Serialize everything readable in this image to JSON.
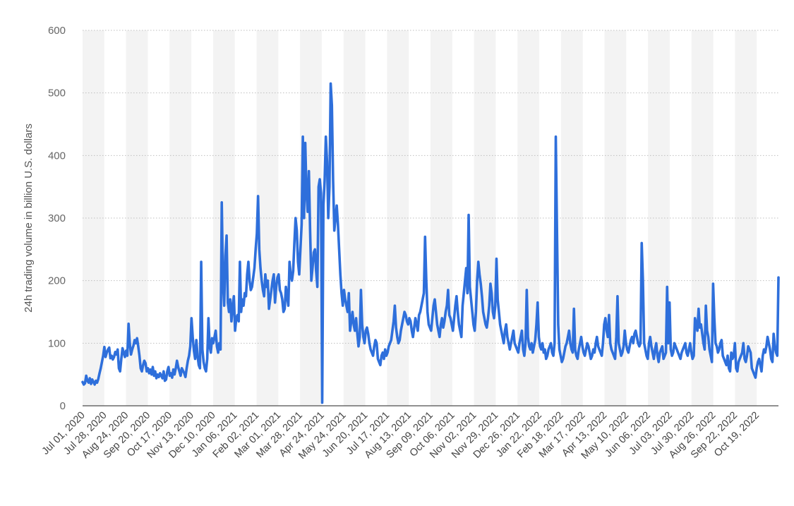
{
  "chart_data": {
    "type": "line",
    "title": "",
    "xlabel": "",
    "ylabel": "24h trading volume in billion U.S. dollars",
    "ylim": [
      0,
      600
    ],
    "yticks": [
      0,
      100,
      200,
      300,
      400,
      500,
      600
    ],
    "grid": "horizontal dotted",
    "legend": "none",
    "colors": {
      "line": "#2E6FDB",
      "band": "#F3F3F3",
      "grid": "#BFBFBF",
      "axis": "#222222"
    },
    "x_tick_labels": [
      "Jul 01, 2020",
      "Jul 28, 2020",
      "Aug 24, 2020",
      "Sep 20, 2020",
      "Oct 17, 2020",
      "Nov 13, 2020",
      "Dec 10, 2020",
      "Jan 06, 2021",
      "Feb 02, 2021",
      "Mar 01, 2021",
      "Mar 28, 2021",
      "Apr 24, 2021",
      "May 24, 2021",
      "Jun 20, 2021",
      "Jul 17, 2021",
      "Aug 13, 2021",
      "Sep 09, 2021",
      "Oct 06, 2021",
      "Nov 02, 2021",
      "Nov 29, 2021",
      "Dec 26, 2021",
      "Jan 22, 2022",
      "Feb 18, 2022",
      "Mar 17, 2022",
      "Apr 13, 2022",
      "May 10, 2022",
      "Jun 06, 2022",
      "Jul 03, 2022",
      "Jul 30, 2022",
      "Aug 26, 2022",
      "Sep 22, 2022",
      "Oct 19, 2022"
    ],
    "series": [
      {
        "values": [
          38,
          34,
          36,
          48,
          40,
          37,
          44,
          35,
          42,
          38,
          34,
          40,
          37,
          43,
          52,
          60,
          70,
          80,
          94,
          78,
          85,
          90,
          93,
          76,
          80,
          74,
          78,
          86,
          82,
          90,
          60,
          55,
          75,
          92,
          85,
          78,
          88,
          80,
          131,
          100,
          82,
          90,
          96,
          105,
          100,
          108,
          95,
          80,
          60,
          55,
          65,
          72,
          68,
          55,
          60,
          52,
          58,
          50,
          62,
          48,
          55,
          44,
          50,
          46,
          52,
          48,
          44,
          55,
          40,
          42,
          55,
          62,
          48,
          52,
          45,
          58,
          50,
          60,
          72,
          62,
          55,
          48,
          60,
          56,
          52,
          46,
          60,
          72,
          80,
          95,
          140,
          110,
          88,
          75,
          105,
          80,
          65,
          60,
          230,
          90,
          70,
          60,
          55,
          75,
          140,
          95,
          85,
          108,
          100,
          110,
          120,
          95,
          85,
          100,
          90,
          325,
          200,
          160,
          240,
          272,
          165,
          150,
          170,
          135,
          160,
          175,
          120,
          140,
          145,
          135,
          230,
          150,
          170,
          160,
          180,
          175,
          210,
          230,
          200,
          185,
          190,
          205,
          220,
          250,
          275,
          335,
          250,
          220,
          200,
          185,
          175,
          210,
          190,
          200,
          155,
          170,
          185,
          200,
          210,
          165,
          190,
          205,
          210,
          185,
          180,
          170,
          150,
          155,
          190,
          175,
          160,
          230,
          210,
          200,
          215,
          260,
          300,
          280,
          230,
          210,
          250,
          290,
          430,
          300,
          420,
          340,
          310,
          375,
          280,
          200,
          220,
          245,
          250,
          215,
          190,
          350,
          362,
          340,
          5,
          320,
          360,
          430,
          390,
          300,
          350,
          515,
          480,
          360,
          280,
          300,
          320,
          290,
          250,
          210,
          180,
          160,
          185,
          170,
          160,
          150,
          180,
          120,
          135,
          150,
          130,
          120,
          140,
          115,
          95,
          110,
          185,
          130,
          110,
          100,
          120,
          125,
          115,
          100,
          90,
          85,
          80,
          95,
          105,
          100,
          75,
          70,
          65,
          80,
          85,
          75,
          90,
          80,
          85,
          95,
          100,
          105,
          120,
          135,
          160,
          125,
          110,
          100,
          105,
          120,
          130,
          140,
          150,
          145,
          135,
          130,
          140,
          135,
          120,
          110,
          125,
          140,
          130,
          120,
          145,
          150,
          160,
          170,
          180,
          270,
          200,
          150,
          130,
          125,
          120,
          140,
          160,
          170,
          150,
          130,
          120,
          110,
          130,
          140,
          125,
          135,
          150,
          160,
          185,
          145,
          140,
          130,
          120,
          140,
          160,
          175,
          150,
          130,
          120,
          110,
          160,
          180,
          200,
          220,
          180,
          305,
          190,
          170,
          150,
          130,
          120,
          150,
          200,
          230,
          210,
          195,
          175,
          150,
          140,
          130,
          125,
          140,
          160,
          195,
          180,
          150,
          140,
          160,
          235,
          170,
          150,
          130,
          120,
          110,
          100,
          120,
          130,
          110,
          100,
          90,
          100,
          110,
          120,
          100,
          95,
          90,
          85,
          100,
          110,
          120,
          90,
          80,
          100,
          185,
          110,
          95,
          90,
          100,
          85,
          95,
          105,
          130,
          165,
          110,
          95,
          90,
          100,
          85,
          90,
          75,
          80,
          90,
          95,
          100,
          85,
          80,
          100,
          430,
          280,
          130,
          90,
          80,
          70,
          75,
          85,
          95,
          100,
          110,
          120,
          100,
          90,
          85,
          155,
          90,
          80,
          75,
          90,
          100,
          110,
          95,
          85,
          80,
          90,
          100,
          95,
          85,
          75,
          80,
          90,
          85,
          100,
          110,
          95,
          90,
          85,
          80,
          100,
          130,
          140,
          120,
          110,
          145,
          100,
          90,
          85,
          80,
          75,
          110,
          175,
          100,
          90,
          80,
          85,
          95,
          120,
          100,
          90,
          85,
          95,
          105,
          110,
          100,
          115,
          120,
          110,
          100,
          95,
          100,
          260,
          200,
          100,
          90,
          80,
          75,
          100,
          110,
          95,
          85,
          75,
          90,
          100,
          80,
          70,
          85,
          90,
          95,
          75,
          80,
          85,
          190,
          100,
          165,
          90,
          80,
          85,
          100,
          95,
          90,
          85,
          80,
          75,
          85,
          90,
          95,
          100,
          85,
          80,
          90,
          100,
          85,
          75,
          80,
          140,
          130,
          120,
          155,
          125,
          130,
          115,
          100,
          90,
          160,
          120,
          110,
          90,
          80,
          70,
          195,
          140,
          100,
          95,
          85,
          90,
          100,
          105,
          80,
          75,
          70,
          65,
          80,
          60,
          55,
          85,
          75,
          80,
          100,
          60,
          55,
          70,
          75,
          80,
          85,
          100,
          75,
          70,
          80,
          95,
          90,
          85,
          60,
          55,
          50,
          45,
          60,
          70,
          75,
          65,
          55,
          80,
          90,
          85,
          95,
          110,
          100,
          90,
          75,
          70,
          115,
          95,
          85,
          80,
          205
        ]
      }
    ]
  }
}
